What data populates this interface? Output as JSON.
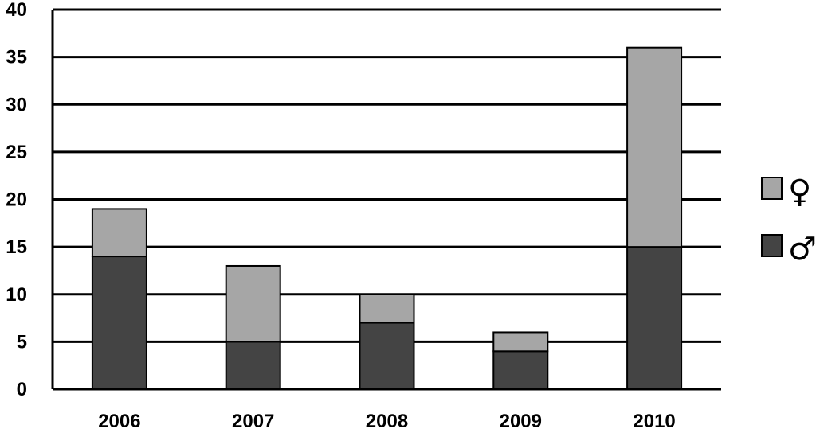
{
  "chart_data": {
    "type": "bar",
    "stacked": true,
    "categories": [
      "2006",
      "2007",
      "2008",
      "2009",
      "2010"
    ],
    "series": [
      {
        "name": "♂",
        "values": [
          14,
          5,
          7,
          4,
          15
        ],
        "color": "#444444"
      },
      {
        "name": "♀",
        "values": [
          5,
          8,
          3,
          2,
          21
        ],
        "color": "#a6a6a6"
      }
    ],
    "ylim": [
      0,
      40
    ],
    "yticks": [
      "0",
      "5",
      "10",
      "15",
      "20",
      "25",
      "30",
      "35",
      "40"
    ],
    "grid": true,
    "legend_position": "right"
  }
}
